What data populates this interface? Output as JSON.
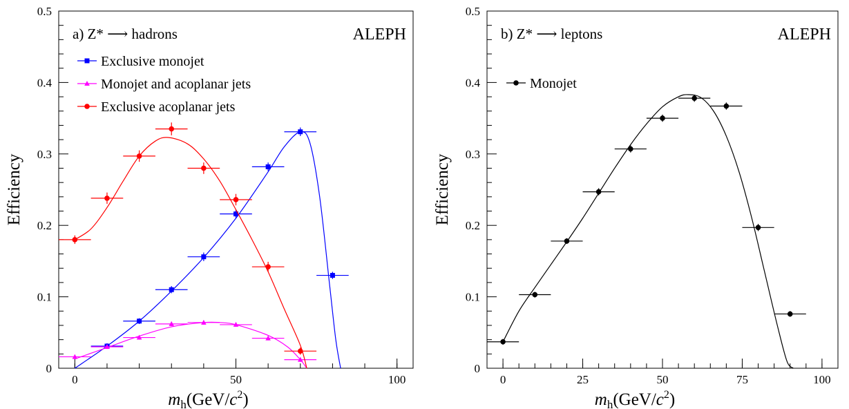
{
  "chart_data": [
    {
      "type": "scatter",
      "panel_label": "a)",
      "process": "Z* ⟶ hadrons",
      "experiment": "ALEPH",
      "xlabel": "m_h (GeV/c²)",
      "ylabel": "Efficiency",
      "xlim": [
        -5,
        105
      ],
      "ylim": [
        0,
        0.5
      ],
      "xticks": [
        "0",
        "50",
        "100"
      ],
      "yticks": [
        "0",
        "0.1",
        "0.2",
        "0.3",
        "0.4",
        "0.5"
      ],
      "legend_position": "top-left",
      "series": [
        {
          "name": "Exclusive monojet",
          "color": "#0000ff",
          "marker": "square",
          "x": [
            10,
            20,
            30,
            40,
            50,
            60,
            70,
            80
          ],
          "y": [
            0.031,
            0.066,
            0.11,
            0.156,
            0.216,
            0.282,
            0.331,
            0.13
          ],
          "xerr": 5,
          "yerr": [
            0.004,
            0.004,
            0.005,
            0.006,
            0.006,
            0.006,
            0.006,
            0.005
          ],
          "fit": {
            "x": [
              0,
              10,
              20,
              30,
              40,
              50,
              60,
              65,
              70,
              73,
              76,
              79,
              81,
              82.5
            ],
            "y": [
              0,
              0.031,
              0.066,
              0.108,
              0.155,
              0.21,
              0.275,
              0.31,
              0.331,
              0.315,
              0.24,
              0.12,
              0.04,
              0
            ]
          }
        },
        {
          "name": "Monojet and acoplanar jets",
          "color": "#ff00ff",
          "marker": "triangle",
          "x": [
            0,
            10,
            20,
            30,
            40,
            50,
            60,
            70
          ],
          "y": [
            0.016,
            0.03,
            0.043,
            0.062,
            0.064,
            0.061,
            0.042,
            0.012
          ],
          "xerr": 5,
          "yerr": [
            0.002,
            0.002,
            0.003,
            0.003,
            0.003,
            0.003,
            0.003,
            0.003
          ],
          "fit": {
            "x": [
              0,
              10,
              20,
              30,
              40,
              45,
              50,
              60,
              66,
              70,
              72
            ],
            "y": [
              0.013,
              0.029,
              0.045,
              0.058,
              0.064,
              0.064,
              0.061,
              0.046,
              0.03,
              0.012,
              0
            ]
          }
        },
        {
          "name": "Exclusive acoplanar jets",
          "color": "#ff0000",
          "marker": "circle",
          "x": [
            0,
            10,
            20,
            30,
            40,
            50,
            60,
            70
          ],
          "y": [
            0.18,
            0.238,
            0.297,
            0.335,
            0.28,
            0.236,
            0.142,
            0.024
          ],
          "xerr": 5,
          "yerr": [
            0.006,
            0.008,
            0.008,
            0.009,
            0.008,
            0.008,
            0.007,
            0.005
          ],
          "fit": {
            "x": [
              0,
              5,
              10,
              15,
              20,
              25,
              29,
              35,
              40,
              45,
              50,
              55,
              60,
              65,
              70,
              72
            ],
            "y": [
              0.18,
              0.195,
              0.225,
              0.262,
              0.297,
              0.318,
              0.323,
              0.314,
              0.293,
              0.262,
              0.222,
              0.18,
              0.135,
              0.083,
              0.032,
              0
            ]
          }
        }
      ]
    },
    {
      "type": "scatter",
      "panel_label": "b)",
      "process": "Z* ⟶ leptons",
      "experiment": "ALEPH",
      "xlabel": "m_h (GeV/c²)",
      "ylabel": "Efficiency",
      "xlim": [
        -5,
        105
      ],
      "ylim": [
        0,
        0.5
      ],
      "xticks": [
        "0",
        "25",
        "50",
        "75",
        "100"
      ],
      "yticks": [
        "0",
        "0.1",
        "0.2",
        "0.3",
        "0.4",
        "0.5"
      ],
      "legend_position": "top-left",
      "series": [
        {
          "name": "Monojet",
          "color": "#000000",
          "marker": "circle",
          "x": [
            0,
            10,
            20,
            30,
            40,
            50,
            60,
            70,
            80,
            90
          ],
          "y": [
            0.037,
            0.103,
            0.178,
            0.247,
            0.307,
            0.35,
            0.378,
            0.367,
            0.197,
            0.076
          ],
          "xerr": 5,
          "yerr": [
            0.004,
            0.004,
            0.004,
            0.005,
            0.005,
            0.005,
            0.005,
            0.005,
            0.005,
            0.004
          ],
          "fit": {
            "x": [
              0,
              5,
              10,
              15,
              20,
              25,
              30,
              35,
              40,
              45,
              50,
              55,
              58,
              62,
              66,
              70,
              74,
              78,
              82,
              86,
              89,
              91
            ],
            "y": [
              0.037,
              0.08,
              0.113,
              0.145,
              0.177,
              0.21,
              0.245,
              0.28,
              0.313,
              0.342,
              0.366,
              0.38,
              0.383,
              0.379,
              0.36,
              0.325,
              0.275,
              0.21,
              0.135,
              0.06,
              0.01,
              0
            ]
          }
        }
      ]
    }
  ]
}
